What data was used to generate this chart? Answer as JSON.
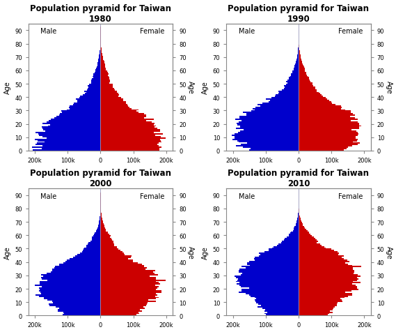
{
  "years": [
    1980,
    1990,
    2000,
    2010
  ],
  "titles": [
    "Population pyramid for Taiwan\n1980",
    "Population pyramid for Taiwan\n1990",
    "Population pyramid for Taiwan\n2000",
    "Population pyramid for Taiwan\n2010"
  ],
  "xlim": 220000,
  "ylim": [
    0,
    95
  ],
  "xticks": [
    -200000,
    -100000,
    0,
    100000,
    200000
  ],
  "xticklabels": [
    "200k",
    "100k",
    "0",
    "100k",
    "200k"
  ],
  "yticks": [
    0,
    10,
    20,
    30,
    40,
    50,
    60,
    70,
    80,
    90
  ],
  "male_color": "#0000CC",
  "female_color": "#CC0000",
  "bg_color": "#FFFFFF",
  "title_fontsize": 8.5,
  "label_fontsize": 7,
  "tick_fontsize": 6,
  "noise_scale": 0.05
}
